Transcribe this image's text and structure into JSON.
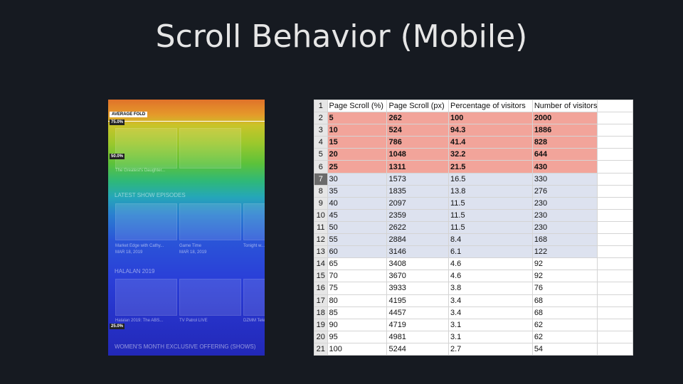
{
  "title": "Scroll Behavior (Mobile)",
  "heatmap": {
    "fold_label": "AVERAGE FOLD",
    "markers": [
      {
        "label": "75.0%",
        "top": 28
      },
      {
        "label": "50.0%",
        "top": 76
      },
      {
        "label": "25.0%",
        "top": 315
      }
    ],
    "sections": [
      "LATEST SHOW EPISODES",
      "HALALAN 2019",
      "WOMEN'S MONTH EXCLUSIVE OFFERING (SHOWS)"
    ],
    "captions": [
      "The Greatest's Daughter...",
      "Market Edge with Cathy...",
      "Game Time",
      "Tonight w...",
      "MAR 18, 2019",
      "MAR 18, 2019",
      "Halalan 2019: The ABS...",
      "TV Patrol LIVE",
      "DZMM Tele..."
    ]
  },
  "table": {
    "row_numbers": [
      1,
      2,
      3,
      4,
      5,
      6,
      7,
      8,
      9,
      10,
      11,
      12,
      13,
      14,
      15,
      16,
      17,
      18,
      19,
      20,
      21
    ],
    "header": [
      "Page Scroll (%)",
      "Page Scroll (px)",
      "Percentage of visitors",
      "Number of visitors"
    ],
    "rows": [
      [
        5,
        262,
        100,
        2000
      ],
      [
        10,
        524,
        94.3,
        1886
      ],
      [
        15,
        786,
        41.4,
        828
      ],
      [
        20,
        1048,
        32.2,
        644
      ],
      [
        25,
        1311,
        21.5,
        430
      ],
      [
        30,
        1573,
        16.5,
        330
      ],
      [
        35,
        1835,
        13.8,
        276
      ],
      [
        40,
        2097,
        11.5,
        230
      ],
      [
        45,
        2359,
        11.5,
        230
      ],
      [
        50,
        2622,
        11.5,
        230
      ],
      [
        55,
        2884,
        8.4,
        168
      ],
      [
        60,
        3146,
        6.1,
        122
      ],
      [
        65,
        3408,
        4.6,
        92
      ],
      [
        70,
        3670,
        4.6,
        92
      ],
      [
        75,
        3933,
        3.8,
        76
      ],
      [
        80,
        4195,
        3.4,
        68
      ],
      [
        85,
        4457,
        3.4,
        68
      ],
      [
        90,
        4719,
        3.1,
        62
      ],
      [
        95,
        4981,
        3.1,
        62
      ],
      [
        100,
        5244,
        2.7,
        54
      ]
    ],
    "bands": [
      {
        "from": 0,
        "to": 4,
        "color": "#f2a49a",
        "bold": true
      },
      {
        "from": 5,
        "to": 11,
        "color": "#dde2ef",
        "bold": false
      }
    ]
  }
}
